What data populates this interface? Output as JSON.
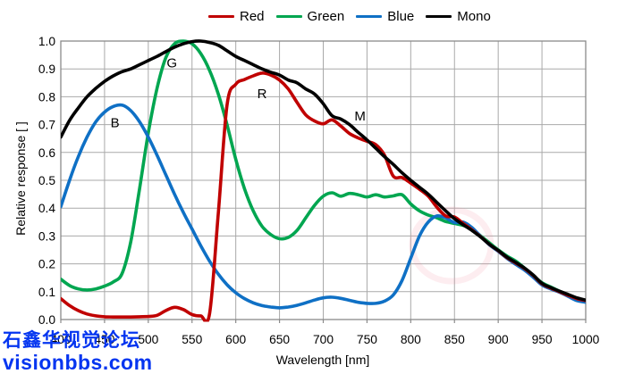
{
  "watermark": {
    "line1": "石鑫华视觉论坛",
    "line2": "visionbbs.com",
    "color": "#0435f0"
  },
  "legend": {
    "items": [
      {
        "label": "Red",
        "color": "#c00000"
      },
      {
        "label": "Green",
        "color": "#00a650"
      },
      {
        "label": "Blue",
        "color": "#0f70c5"
      },
      {
        "label": "Mono",
        "color": "#000000"
      }
    ]
  },
  "chart_data": {
    "type": "line",
    "title": "",
    "xlabel": "Wavelength [nm]",
    "ylabel": "Relative response [ ]",
    "xlim": [
      400,
      1000
    ],
    "ylim": [
      0.0,
      1.0
    ],
    "grid": true,
    "legend_position": "top-center",
    "grid_color": "#a9a9a9",
    "frame_color": "#8a8a8a",
    "x_ticks": [
      400,
      450,
      500,
      550,
      600,
      650,
      700,
      750,
      800,
      850,
      900,
      950,
      1000
    ],
    "x_tick_labels": [
      "400",
      "450",
      "500",
      "550",
      "600",
      "650",
      "700",
      "750",
      "800",
      "850",
      "900",
      "950",
      "1000"
    ],
    "y_ticks": [
      0.0,
      0.1,
      0.2,
      0.3,
      0.4,
      0.5,
      0.6,
      0.7,
      0.8,
      0.9,
      1.0
    ],
    "y_tick_labels": [
      "0.0",
      "0.1",
      "0.2",
      "0.3",
      "0.4",
      "0.5",
      "0.6",
      "0.7",
      "0.8",
      "0.9",
      "1.0"
    ],
    "x": [
      400,
      410,
      420,
      430,
      440,
      450,
      460,
      470,
      480,
      490,
      500,
      510,
      520,
      530,
      540,
      550,
      560,
      570,
      580,
      590,
      600,
      610,
      620,
      630,
      640,
      650,
      660,
      670,
      680,
      690,
      700,
      710,
      720,
      730,
      740,
      750,
      760,
      770,
      780,
      790,
      800,
      810,
      820,
      830,
      840,
      850,
      860,
      870,
      880,
      890,
      900,
      910,
      920,
      930,
      940,
      950,
      960,
      970,
      980,
      990,
      1000
    ],
    "draw_order": [
      "Green",
      "Blue",
      "Red",
      "Mono"
    ],
    "series": [
      {
        "name": "Red",
        "color": "#c00000",
        "values": [
          0.075,
          0.05,
          0.032,
          0.02,
          0.013,
          0.01,
          0.009,
          0.009,
          0.009,
          0.01,
          0.011,
          0.015,
          0.032,
          0.044,
          0.036,
          0.018,
          0.013,
          0.02,
          0.38,
          0.77,
          0.845,
          0.862,
          0.875,
          0.885,
          0.878,
          0.86,
          0.828,
          0.78,
          0.735,
          0.713,
          0.703,
          0.717,
          0.695,
          0.668,
          0.652,
          0.64,
          0.628,
          0.59,
          0.515,
          0.51,
          0.49,
          0.468,
          0.443,
          0.403,
          0.372,
          0.368,
          0.345,
          0.322,
          0.297,
          0.27,
          0.247,
          0.222,
          0.203,
          0.183,
          0.158,
          0.128,
          0.113,
          0.1,
          0.087,
          0.075,
          0.068
        ]
      },
      {
        "name": "Green",
        "color": "#00a650",
        "values": [
          0.145,
          0.122,
          0.11,
          0.106,
          0.11,
          0.12,
          0.135,
          0.165,
          0.28,
          0.47,
          0.67,
          0.83,
          0.94,
          0.99,
          1.0,
          0.99,
          0.955,
          0.895,
          0.81,
          0.7,
          0.575,
          0.47,
          0.39,
          0.335,
          0.305,
          0.29,
          0.295,
          0.32,
          0.365,
          0.41,
          0.443,
          0.455,
          0.443,
          0.453,
          0.448,
          0.44,
          0.448,
          0.44,
          0.444,
          0.448,
          0.415,
          0.39,
          0.375,
          0.365,
          0.352,
          0.345,
          0.338,
          0.325,
          0.3,
          0.275,
          0.25,
          0.228,
          0.21,
          0.185,
          0.158,
          0.132,
          0.117,
          0.102,
          0.088,
          0.075,
          0.066
        ]
      },
      {
        "name": "Blue",
        "color": "#0f70c5",
        "values": [
          0.405,
          0.5,
          0.585,
          0.655,
          0.71,
          0.745,
          0.765,
          0.77,
          0.75,
          0.71,
          0.655,
          0.59,
          0.52,
          0.45,
          0.385,
          0.325,
          0.265,
          0.21,
          0.163,
          0.125,
          0.096,
          0.075,
          0.06,
          0.05,
          0.045,
          0.042,
          0.045,
          0.051,
          0.06,
          0.07,
          0.078,
          0.08,
          0.076,
          0.069,
          0.062,
          0.058,
          0.058,
          0.066,
          0.088,
          0.14,
          0.22,
          0.3,
          0.35,
          0.372,
          0.365,
          0.348,
          0.35,
          0.33,
          0.298,
          0.268,
          0.245,
          0.22,
          0.198,
          0.178,
          0.152,
          0.124,
          0.11,
          0.098,
          0.083,
          0.068,
          0.062
        ]
      },
      {
        "name": "Mono",
        "color": "#000000",
        "values": [
          0.655,
          0.715,
          0.76,
          0.8,
          0.83,
          0.855,
          0.875,
          0.89,
          0.9,
          0.915,
          0.93,
          0.945,
          0.962,
          0.978,
          0.99,
          0.998,
          1.0,
          0.995,
          0.985,
          0.965,
          0.945,
          0.93,
          0.915,
          0.9,
          0.888,
          0.878,
          0.86,
          0.85,
          0.828,
          0.81,
          0.775,
          0.732,
          0.72,
          0.7,
          0.672,
          0.645,
          0.615,
          0.585,
          0.557,
          0.527,
          0.5,
          0.475,
          0.45,
          0.42,
          0.39,
          0.362,
          0.34,
          0.32,
          0.296,
          0.27,
          0.248,
          0.224,
          0.205,
          0.185,
          0.16,
          0.13,
          0.115,
          0.102,
          0.09,
          0.078,
          0.07
        ]
      }
    ],
    "annotations": [
      {
        "text": "B",
        "wavelength": 462,
        "value": 0.69
      },
      {
        "text": "G",
        "wavelength": 527,
        "value": 0.905
      },
      {
        "text": "R",
        "wavelength": 630,
        "value": 0.795
      },
      {
        "text": "M",
        "wavelength": 742,
        "value": 0.715
      }
    ]
  }
}
